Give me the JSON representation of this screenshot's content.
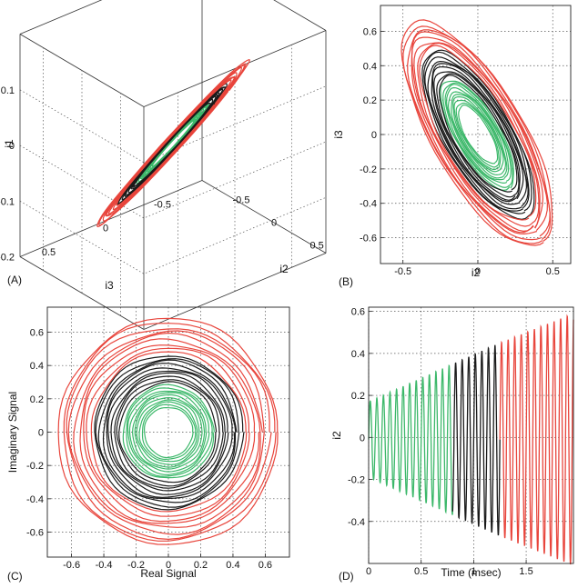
{
  "colors": {
    "early": "#3cb86a",
    "middle": "#1a1a1a",
    "late": "#e8453c"
  },
  "chart_data": [
    {
      "panel_label": "(A)",
      "type": "line",
      "projection": "3d",
      "xlabel": "i3",
      "ylabel": "i2",
      "zlabel": "i1",
      "xlim": [
        -0.8,
        0.8
      ],
      "ylim": [
        -0.8,
        0.8
      ],
      "zlim": [
        -0.2,
        0.2
      ],
      "xticks": [
        "0.5",
        "0",
        "-0.5"
      ],
      "yticks": [
        "-0.5",
        "0",
        "0.5"
      ],
      "zticks": [
        "0.1",
        "0",
        "-0.1",
        "-0.2"
      ],
      "series": [
        {
          "color_key": "early",
          "amplitude": [
            0.22,
            0.38
          ],
          "turns": 10
        },
        {
          "color_key": "middle",
          "amplitude": [
            0.4,
            0.58
          ],
          "turns": 9
        },
        {
          "color_key": "late",
          "amplitude": [
            0.6,
            0.8
          ],
          "turns": 8
        }
      ]
    },
    {
      "panel_label": "(B)",
      "type": "line",
      "xlabel": "i2",
      "ylabel": "i3",
      "xlim": [
        -0.65,
        0.62
      ],
      "ylim": [
        -0.75,
        0.75
      ],
      "xticks": [
        -0.5,
        0,
        0.5
      ],
      "yticks": [
        0.6,
        0.4,
        0.2,
        0,
        -0.2,
        -0.4,
        -0.6
      ],
      "series": [
        {
          "color_key": "early",
          "amplitude": [
            0.18,
            0.34
          ],
          "turns": 10
        },
        {
          "color_key": "middle",
          "amplitude": [
            0.36,
            0.52
          ],
          "turns": 9
        },
        {
          "color_key": "late",
          "amplitude": [
            0.54,
            0.7
          ],
          "turns": 8
        }
      ]
    },
    {
      "panel_label": "(C)",
      "type": "line",
      "xlabel": "Real Signal",
      "ylabel": "Imaginary Signal",
      "xlim": [
        -0.75,
        0.75
      ],
      "ylim": [
        -0.75,
        0.75
      ],
      "xticks": [
        -0.6,
        -0.4,
        -0.2,
        0,
        0.2,
        0.4,
        0.6
      ],
      "yticks": [
        0.6,
        0.4,
        0.2,
        0,
        -0.2,
        -0.4,
        -0.6
      ],
      "series": [
        {
          "color_key": "early",
          "radius": [
            0.15,
            0.28
          ],
          "turns": 10
        },
        {
          "color_key": "middle",
          "radius": [
            0.3,
            0.46
          ],
          "turns": 10
        },
        {
          "color_key": "late",
          "radius": [
            0.48,
            0.68
          ],
          "turns": 9
        }
      ]
    },
    {
      "panel_label": "(D)",
      "type": "line",
      "xlabel": "Time (msec)",
      "ylabel": "i2",
      "xlim": [
        0,
        1.95
      ],
      "ylim": [
        -0.6,
        0.62
      ],
      "xticks": [
        0,
        0.5,
        1,
        1.5
      ],
      "yticks": [
        0.6,
        0.4,
        0.2,
        0,
        -0.2,
        -0.4
      ],
      "series": [
        {
          "color_key": "early",
          "t": [
            0,
            0.8
          ],
          "amplitude": [
            0.18,
            0.36
          ]
        },
        {
          "color_key": "middle",
          "t": [
            0.8,
            1.25
          ],
          "amplitude": [
            0.36,
            0.46
          ]
        },
        {
          "color_key": "late",
          "t": [
            1.25,
            1.95
          ],
          "amplitude": [
            0.46,
            0.6
          ]
        }
      ],
      "cycles_per_msec": 16
    }
  ]
}
